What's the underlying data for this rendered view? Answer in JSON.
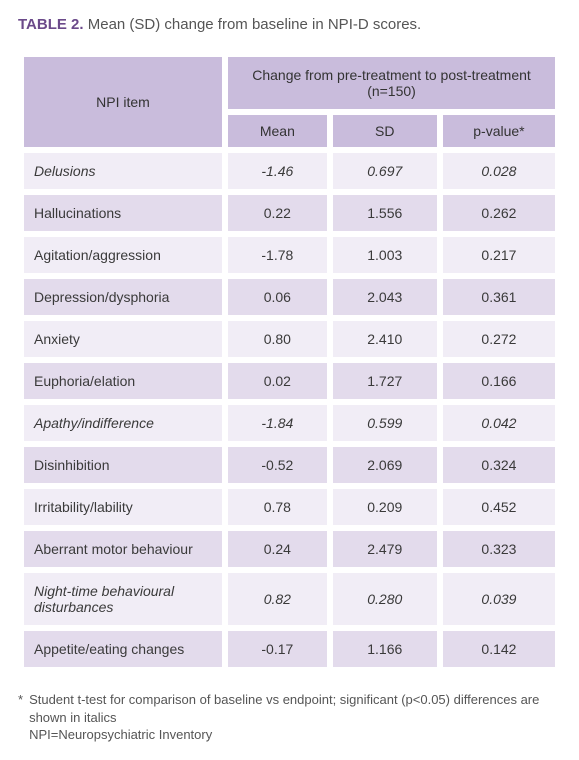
{
  "title": {
    "label": "TABLE 2.",
    "text": "Mean (SD) change from baseline in NPI-D scores."
  },
  "header": {
    "npi_item": "NPI item",
    "group": "Change from pre-treatment to post-treatment (n=150)",
    "mean": "Mean",
    "sd": "SD",
    "pvalue": "p-value*"
  },
  "rows": [
    {
      "item": "Delusions",
      "mean": "-1.46",
      "sd": "0.697",
      "p": "0.028",
      "sig": true
    },
    {
      "item": "Hallucinations",
      "mean": "0.22",
      "sd": "1.556",
      "p": "0.262",
      "sig": false
    },
    {
      "item": "Agitation/aggression",
      "mean": "-1.78",
      "sd": "1.003",
      "p": "0.217",
      "sig": false
    },
    {
      "item": "Depression/dysphoria",
      "mean": "0.06",
      "sd": "2.043",
      "p": "0.361",
      "sig": false
    },
    {
      "item": "Anxiety",
      "mean": "0.80",
      "sd": "2.410",
      "p": "0.272",
      "sig": false
    },
    {
      "item": "Euphoria/elation",
      "mean": "0.02",
      "sd": "1.727",
      "p": "0.166",
      "sig": false
    },
    {
      "item": "Apathy/indifference",
      "mean": "-1.84",
      "sd": "0.599",
      "p": "0.042",
      "sig": true
    },
    {
      "item": "Disinhibition",
      "mean": "-0.52",
      "sd": "2.069",
      "p": "0.324",
      "sig": false
    },
    {
      "item": "Irritability/lability",
      "mean": "0.78",
      "sd": "0.209",
      "p": "0.452",
      "sig": false
    },
    {
      "item": "Aberrant motor behaviour",
      "mean": "0.24",
      "sd": "2.479",
      "p": "0.323",
      "sig": false
    },
    {
      "item": "Night-time behavioural disturbances",
      "mean": "0.82",
      "sd": "0.280",
      "p": "0.039",
      "sig": true
    },
    {
      "item": "Appetite/eating changes",
      "mean": "-0.17",
      "sd": "1.166",
      "p": "0.142",
      "sig": false
    }
  ],
  "footnote": {
    "star": "*",
    "line1": "Student t-test for comparison of baseline vs endpoint; significant (p<0.05) differences are shown in italics",
    "line2": "NPI=Neuropsychiatric Inventory"
  },
  "colors": {
    "header_bg": "#c9bcdc",
    "row_odd": "#f1edf6",
    "row_even": "#e3dbec",
    "title": "#6b4a8a"
  }
}
